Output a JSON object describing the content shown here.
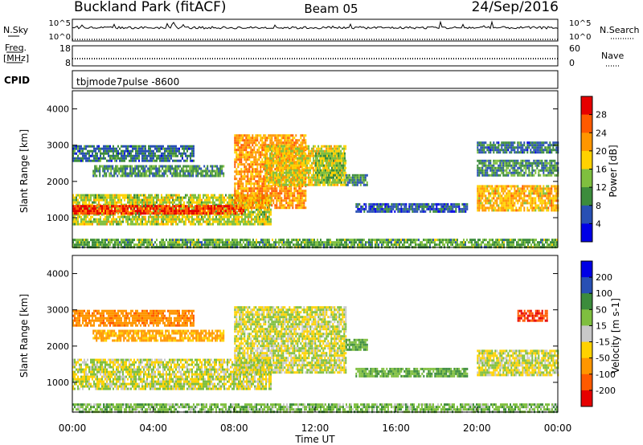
{
  "header": {
    "title": "Buckland Park (fitACF)",
    "beam": "Beam 05",
    "date": "24/Sep/2016"
  },
  "strips": {
    "nsky": {
      "label": "N.Sky",
      "y_top": "10^5",
      "y_bottom": "10^0",
      "right_top": "10^5",
      "right_bottom": "10^0",
      "right_label": "N.Search"
    },
    "freq": {
      "label_1": "Freq.",
      "label_2": "[MHz]",
      "y_top": "18",
      "y_bottom": "8",
      "right_top": "60",
      "right_bottom": "0",
      "right_label": "Nave"
    },
    "cpid": {
      "label": "CPID",
      "value": "tbjmode7pulse  -8600"
    }
  },
  "chart_data": [
    {
      "type": "heatmap",
      "name": "Power",
      "ylabel": "Slant Range [km]",
      "yticks": [
        1000,
        2000,
        3000,
        4000
      ],
      "ylim": [
        180,
        4500
      ],
      "xlim": [
        0,
        24
      ],
      "colorbar": {
        "label": "Power [dB]",
        "ticks": [
          "28",
          "24",
          "20",
          "16",
          "12",
          "8",
          "4"
        ],
        "colors": [
          "#e60000",
          "#ff5a00",
          "#ff9600",
          "#ffd200",
          "#7fbf3f",
          "#3c8c3c",
          "#2850b4",
          "#0000e6"
        ]
      },
      "bands": [
        {
          "t0": 0.0,
          "t1": 9.8,
          "r0": 850,
          "r1": 1650,
          "dB": 16
        },
        {
          "t0": 0.0,
          "t1": 8.5,
          "r0": 1100,
          "r1": 1350,
          "dB": 28
        },
        {
          "t0": 0.0,
          "t1": 6.0,
          "r0": 2600,
          "r1": 3000,
          "dB": 8
        },
        {
          "t0": 1.0,
          "t1": 7.5,
          "r0": 2150,
          "r1": 2450,
          "dB": 10
        },
        {
          "t0": 8.0,
          "t1": 11.5,
          "r0": 1300,
          "r1": 3300,
          "dB": 22
        },
        {
          "t0": 9.5,
          "t1": 13.5,
          "r0": 1900,
          "r1": 3000,
          "dB": 18
        },
        {
          "t0": 12.0,
          "t1": 13.5,
          "r0": 2000,
          "r1": 2800,
          "dB": 14
        },
        {
          "t0": 13.5,
          "t1": 14.6,
          "r0": 1900,
          "r1": 2200,
          "dB": 10
        },
        {
          "t0": 14.0,
          "t1": 19.5,
          "r0": 1150,
          "r1": 1400,
          "dB": 6
        },
        {
          "t0": 20.0,
          "t1": 24.0,
          "r0": 1200,
          "r1": 1900,
          "dB": 20
        },
        {
          "t0": 20.0,
          "t1": 24.0,
          "r0": 2200,
          "r1": 2600,
          "dB": 10
        },
        {
          "t0": 20.0,
          "t1": 24.0,
          "r0": 2800,
          "r1": 3100,
          "dB": 8
        },
        {
          "t0": 0.0,
          "t1": 24.0,
          "r0": 180,
          "r1": 420,
          "dB": 12
        }
      ]
    },
    {
      "type": "heatmap",
      "name": "Velocity",
      "ylabel": "Slant Range [km]",
      "xlabel": "Time UT",
      "xticks": [
        "00:00",
        "04:00",
        "08:00",
        "12:00",
        "16:00",
        "20:00",
        "00:00"
      ],
      "yticks": [
        1000,
        2000,
        3000,
        4000
      ],
      "ylim": [
        180,
        4500
      ],
      "xlim": [
        0,
        24
      ],
      "colorbar": {
        "label": "Velocity [m s-1]",
        "ticks": [
          "200",
          "100",
          "50",
          "15",
          "-15",
          "-50",
          "-100",
          "-200"
        ],
        "colors": [
          "#0000e6",
          "#2850b4",
          "#3c8c3c",
          "#7fbf3f",
          "#c8c8c8",
          "#ffd200",
          "#ff9600",
          "#ff5a00",
          "#e60000"
        ]
      },
      "bands": [
        {
          "t0": 0.0,
          "t1": 9.8,
          "r0": 850,
          "r1": 1650,
          "v": 0
        },
        {
          "t0": 0.0,
          "t1": 6.0,
          "r0": 2600,
          "r1": 3000,
          "v": -60
        },
        {
          "t0": 1.0,
          "t1": 7.5,
          "r0": 2150,
          "r1": 2450,
          "v": -40
        },
        {
          "t0": 8.0,
          "t1": 13.5,
          "r0": 1300,
          "r1": 3100,
          "v": 0
        },
        {
          "t0": 13.5,
          "t1": 14.6,
          "r0": 1900,
          "r1": 2200,
          "v": 30
        },
        {
          "t0": 14.0,
          "t1": 19.5,
          "r0": 1150,
          "r1": 1400,
          "v": 30
        },
        {
          "t0": 20.0,
          "t1": 24.0,
          "r0": 1200,
          "r1": 1900,
          "v": 0
        },
        {
          "t0": 22.0,
          "t1": 23.5,
          "r0": 2700,
          "r1": 3000,
          "v": -150
        },
        {
          "t0": 0.0,
          "t1": 24.0,
          "r0": 180,
          "r1": 420,
          "v": 20
        }
      ]
    }
  ]
}
